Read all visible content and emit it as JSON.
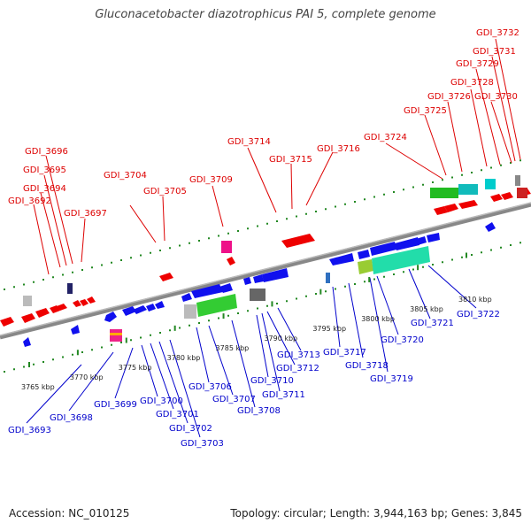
{
  "title": "Gluconacetobacter diazotrophicus PAI 5, complete genome",
  "footer": {
    "accession": "Accession: NC_010125",
    "topology": "Topology: circular; Length: 3,944,163 bp; Genes: 3,845"
  },
  "colors": {
    "forward": "#ee0000",
    "reverse": "#1010ee",
    "backbone": "#888888",
    "ruler": "#228822"
  },
  "ruler_labels": [
    {
      "text": "3765 kbp",
      "kbp": 3765
    },
    {
      "text": "3770 kbp",
      "kbp": 3770
    },
    {
      "text": "3775 kbp",
      "kbp": 3775
    },
    {
      "text": "3780 kbp",
      "kbp": 3780
    },
    {
      "text": "3785 kbp",
      "kbp": 3785
    },
    {
      "text": "3790 kbp",
      "kbp": 3790
    },
    {
      "text": "3795 kbp",
      "kbp": 3795
    },
    {
      "text": "3800 kbp",
      "kbp": 3800
    },
    {
      "text": "3805 kbp",
      "kbp": 3805
    },
    {
      "text": "3810 kbp",
      "kbp": 3810
    }
  ],
  "top_genes": [
    "GDI_3692",
    "GDI_3694",
    "GDI_3695",
    "GDI_3696",
    "GDI_3697",
    "GDI_3704",
    "GDI_3705",
    "GDI_3709",
    "GDI_3714",
    "GDI_3715",
    "GDI_3716",
    "GDI_3724",
    "GDI_3725",
    "GDI_3726",
    "GDI_3728",
    "GDI_3729",
    "GDI_3730",
    "GDI_3731",
    "GDI_3732"
  ],
  "bottom_genes": [
    "GDI_3693",
    "GDI_3698",
    "GDI_3699",
    "GDI_3700",
    "GDI_3701",
    "GDI_3702",
    "GDI_3703",
    "GDI_3706",
    "GDI_3707",
    "GDI_3708",
    "GDI_3710",
    "GDI_3711",
    "GDI_3712",
    "GDI_3713",
    "GDI_3717",
    "GDI_3718",
    "GDI_3719",
    "GDI_3720",
    "GDI_3721",
    "GDI_3722"
  ]
}
